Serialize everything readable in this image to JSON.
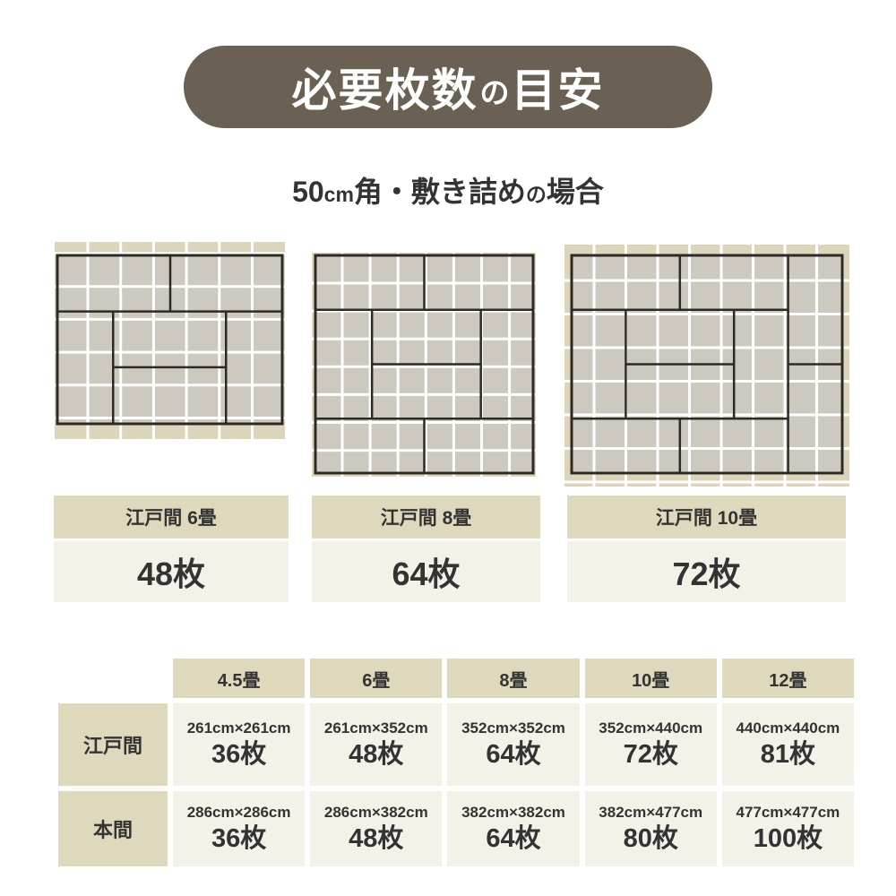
{
  "title": {
    "part1": "必要枚数",
    "particle": "の",
    "part2": "目安"
  },
  "subtitle": {
    "num": "50",
    "unit": "cm",
    "mid": "角・敷き詰め",
    "particle": "の",
    "tail": "場合"
  },
  "colors": {
    "title_bg": "#6a6054",
    "title_text": "#ffffff",
    "text": "#333333",
    "tan_tile": "#ddd5bb",
    "gray_tile": "#cdc9c1",
    "grid_line": "#ffffff",
    "mat_outline": "#2d2a25",
    "head_bg": "#ded8bc",
    "cell_bg": "#f4f2e8"
  },
  "diagrams": [
    {
      "label": "江戸間 6畳",
      "count": "48枚",
      "mats": 6
    },
    {
      "label": "江戸間 8畳",
      "count": "64枚",
      "mats": 8
    },
    {
      "label": "江戸間 10畳",
      "count": "72枚",
      "mats": 10
    }
  ],
  "table": {
    "col_headers": [
      "4.5畳",
      "6畳",
      "8畳",
      "10畳",
      "12畳"
    ],
    "rows": [
      {
        "header": "江戸間",
        "cells": [
          {
            "size": "261cm×261cm",
            "count": "36枚"
          },
          {
            "size": "261cm×352cm",
            "count": "48枚"
          },
          {
            "size": "352cm×352cm",
            "count": "64枚"
          },
          {
            "size": "352cm×440cm",
            "count": "72枚"
          },
          {
            "size": "440cm×440cm",
            "count": "81枚"
          }
        ]
      },
      {
        "header": "本間",
        "cells": [
          {
            "size": "286cm×286cm",
            "count": "36枚"
          },
          {
            "size": "286cm×382cm",
            "count": "48枚"
          },
          {
            "size": "382cm×382cm",
            "count": "64枚"
          },
          {
            "size": "382cm×477cm",
            "count": "80枚"
          },
          {
            "size": "477cm×477cm",
            "count": "100枚"
          }
        ]
      }
    ]
  }
}
